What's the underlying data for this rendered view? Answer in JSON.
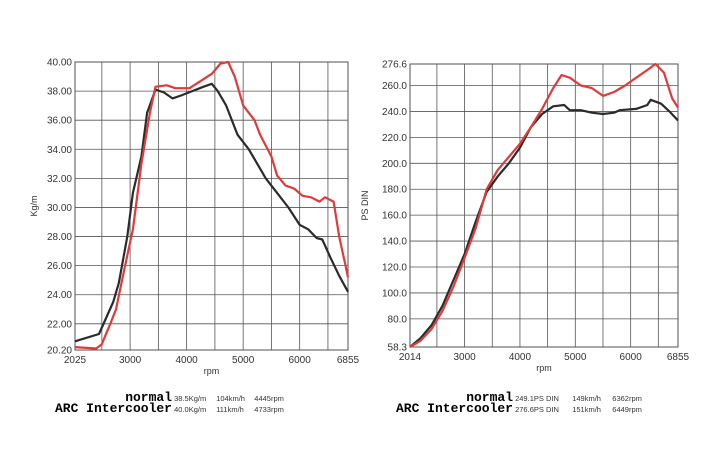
{
  "chart_data": [
    {
      "type": "line",
      "xlabel": "rpm",
      "ylabel": "Kg/m",
      "xlim": [
        2025,
        6855
      ],
      "ylim": [
        20.2,
        40.0
      ],
      "xticks": [
        "2025",
        "3000",
        "4000",
        "5000",
        "6000",
        "6855"
      ],
      "yticks": [
        "20.20",
        "22.00",
        "24.00",
        "26.00",
        "28.00",
        "30.00",
        "32.00",
        "34.00",
        "36.00",
        "38.00",
        "40.00"
      ],
      "series": [
        {
          "name": "normal",
          "color": "#2b2b2b",
          "points": [
            [
              2025,
              20.8
            ],
            [
              2450,
              21.3
            ],
            [
              2700,
              23.5
            ],
            [
              2800,
              24.8
            ],
            [
              2950,
              28
            ],
            [
              3050,
              31
            ],
            [
              3200,
              33.5
            ],
            [
              3300,
              36.5
            ],
            [
              3450,
              38.1
            ],
            [
              3600,
              37.9
            ],
            [
              3750,
              37.5
            ],
            [
              3900,
              37.7
            ],
            [
              4100,
              38
            ],
            [
              4300,
              38.3
            ],
            [
              4445,
              38.5
            ],
            [
              4550,
              38
            ],
            [
              4700,
              37
            ],
            [
              4900,
              35
            ],
            [
              5100,
              34
            ],
            [
              5400,
              32
            ],
            [
              5600,
              31
            ],
            [
              5800,
              30
            ],
            [
              6000,
              28.8
            ],
            [
              6150,
              28.5
            ],
            [
              6300,
              27.9
            ],
            [
              6400,
              27.8
            ],
            [
              6550,
              26.5
            ],
            [
              6700,
              25.3
            ],
            [
              6855,
              24.2
            ]
          ]
        },
        {
          "name": "ARC Intercooler",
          "color": "#e03a3a",
          "points": [
            [
              2025,
              20.4
            ],
            [
              2400,
              20.3
            ],
            [
              2500,
              20.6
            ],
            [
              2650,
              22
            ],
            [
              2750,
              23
            ],
            [
              2900,
              25.8
            ],
            [
              3050,
              28.5
            ],
            [
              3200,
              33
            ],
            [
              3350,
              36.5
            ],
            [
              3450,
              38.3
            ],
            [
              3650,
              38.4
            ],
            [
              3800,
              38.2
            ],
            [
              4050,
              38.2
            ],
            [
              4250,
              38.7
            ],
            [
              4450,
              39.2
            ],
            [
              4600,
              39.9
            ],
            [
              4733,
              40
            ],
            [
              4850,
              39
            ],
            [
              5000,
              37
            ],
            [
              5200,
              36
            ],
            [
              5300,
              35
            ],
            [
              5500,
              33.5
            ],
            [
              5600,
              32.2
            ],
            [
              5750,
              31.5
            ],
            [
              5900,
              31.3
            ],
            [
              6050,
              30.8
            ],
            [
              6200,
              30.7
            ],
            [
              6350,
              30.4
            ],
            [
              6450,
              30.7
            ],
            [
              6600,
              30.4
            ],
            [
              6700,
              28
            ],
            [
              6800,
              26.2
            ],
            [
              6855,
              25.2
            ]
          ]
        }
      ]
    },
    {
      "type": "line",
      "xlabel": "rpm",
      "ylabel": "PS DIN",
      "xlim": [
        2014,
        6855
      ],
      "ylim": [
        58.3,
        276.6
      ],
      "xticks": [
        "2014",
        "3000",
        "4000",
        "5000",
        "6000",
        "6855"
      ],
      "yticks": [
        "58.3",
        "80.0",
        "100.0",
        "120.0",
        "140.0",
        "160.0",
        "180.0",
        "200.0",
        "220.0",
        "240.0",
        "260.0",
        "276.6"
      ],
      "series": [
        {
          "name": "normal",
          "color": "#2b2b2b",
          "points": [
            [
              2014,
              58.3
            ],
            [
              2200,
              65
            ],
            [
              2400,
              75
            ],
            [
              2600,
              90
            ],
            [
              2800,
              110
            ],
            [
              3000,
              130
            ],
            [
              3200,
              155
            ],
            [
              3400,
              178
            ],
            [
              3600,
              190
            ],
            [
              3800,
              200
            ],
            [
              4000,
              212
            ],
            [
              4200,
              228
            ],
            [
              4400,
              238
            ],
            [
              4600,
              244
            ],
            [
              4800,
              245
            ],
            [
              4900,
              241
            ],
            [
              5100,
              241
            ],
            [
              5300,
              239
            ],
            [
              5500,
              238
            ],
            [
              5700,
              239
            ],
            [
              5800,
              241
            ],
            [
              6100,
              242
            ],
            [
              6300,
              245
            ],
            [
              6362,
              249
            ],
            [
              6550,
              246
            ],
            [
              6700,
              240
            ],
            [
              6855,
              233
            ]
          ]
        },
        {
          "name": "ARC Intercooler",
          "color": "#e03a3a",
          "points": [
            [
              2014,
              58.3
            ],
            [
              2200,
              63
            ],
            [
              2400,
              72
            ],
            [
              2600,
              86
            ],
            [
              2800,
              105
            ],
            [
              3000,
              127
            ],
            [
              3200,
              150
            ],
            [
              3400,
              180
            ],
            [
              3600,
              195
            ],
            [
              3800,
              205
            ],
            [
              4000,
              215
            ],
            [
              4200,
              228
            ],
            [
              4400,
              242
            ],
            [
              4600,
              258
            ],
            [
              4750,
              268
            ],
            [
              4900,
              266
            ],
            [
              5100,
              260
            ],
            [
              5300,
              258
            ],
            [
              5500,
              252
            ],
            [
              5700,
              255
            ],
            [
              5900,
              260
            ],
            [
              6100,
              266
            ],
            [
              6300,
              272
            ],
            [
              6449,
              276.6
            ],
            [
              6600,
              270
            ],
            [
              6750,
              250
            ],
            [
              6855,
              243
            ]
          ]
        }
      ]
    }
  ],
  "legends": [
    {
      "rows": [
        {
          "name": "normal",
          "vals": [
            "38.5Kg/m",
            "104km/h",
            "4445rpm"
          ]
        },
        {
          "name": "ARC Intercooler",
          "vals": [
            "40.0Kg/m",
            "111km/h",
            "4733rpm"
          ]
        }
      ]
    },
    {
      "rows": [
        {
          "name": "normal",
          "vals": [
            "249.1PS DIN",
            "149km/h",
            "6362rpm"
          ]
        },
        {
          "name": "ARC Intercooler",
          "vals": [
            "276.6PS DIN",
            "151km/h",
            "6449rpm"
          ]
        }
      ]
    }
  ]
}
